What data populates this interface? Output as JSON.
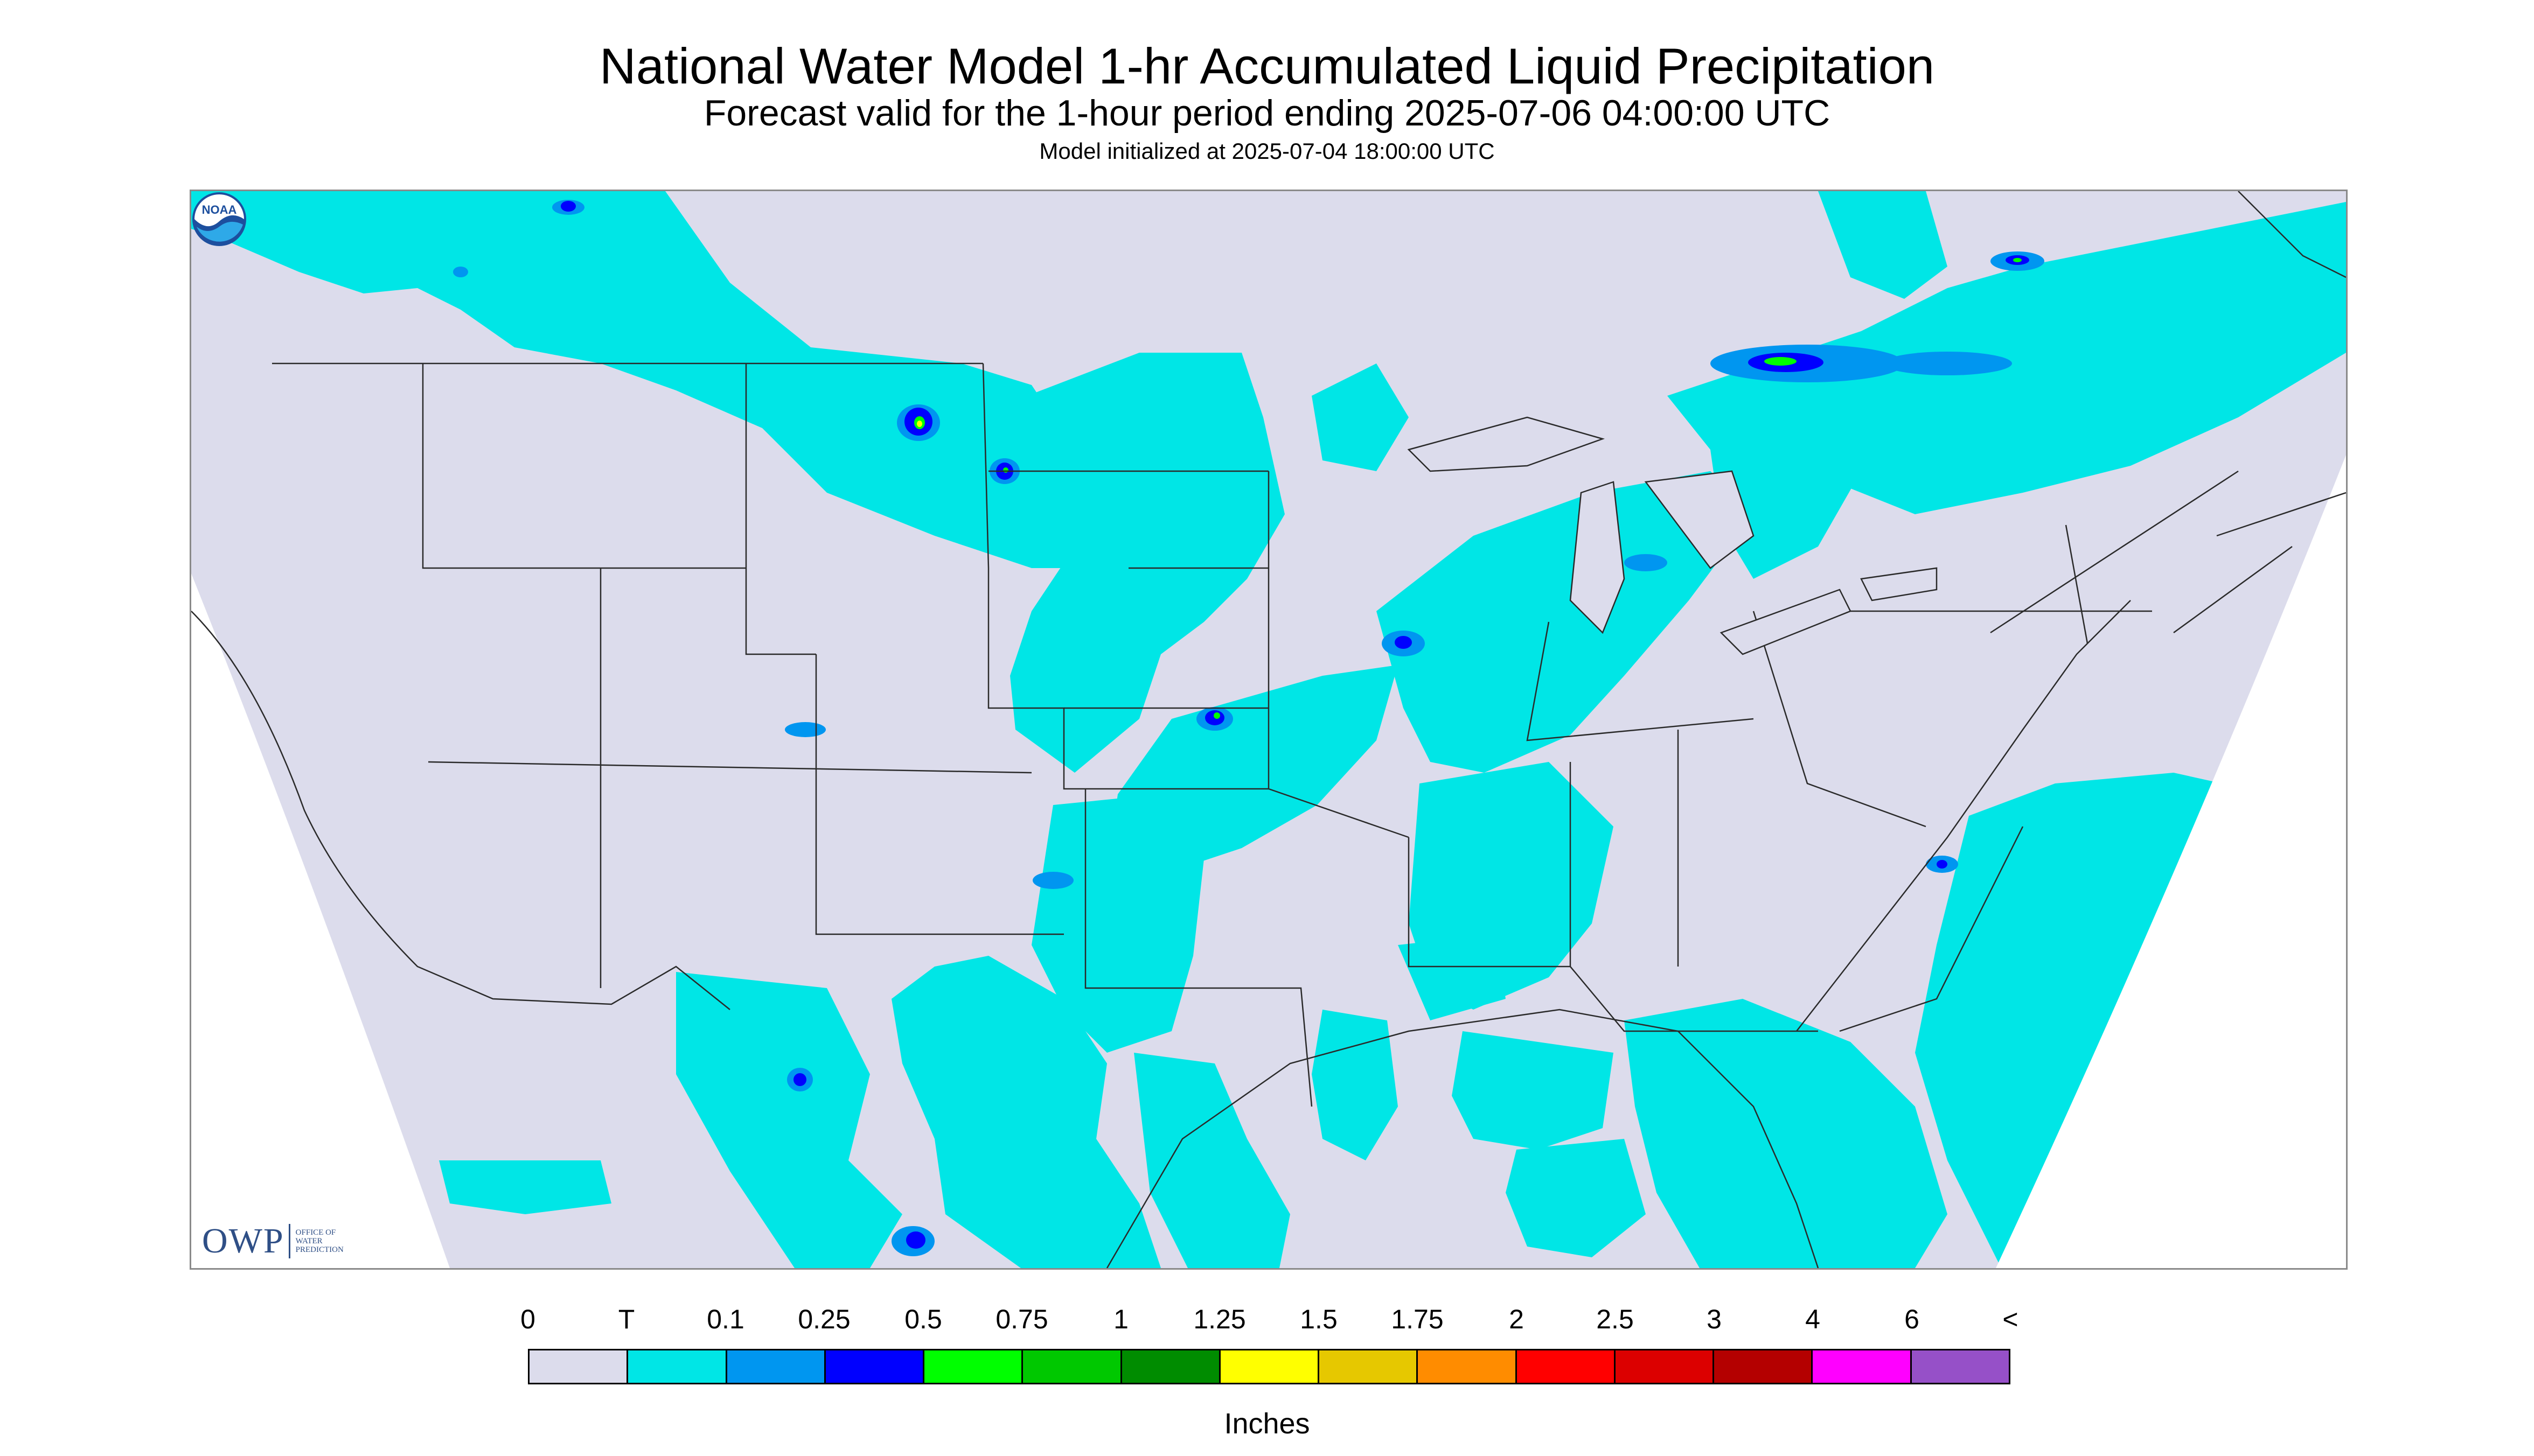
{
  "title": "National Water Model 1-hr Accumulated Liquid Precipitation",
  "subtitle": "Forecast valid for the 1-hour period ending 2025-07-06 04:00:00 UTC",
  "init_line": "Model initialized at 2025-07-04 18:00:00 UTC",
  "map": {
    "outside_color": "#ffffff",
    "no_precip_color": "#dcdcec",
    "region": "Continental United States"
  },
  "logos": {
    "owp": {
      "mark": "OWP",
      "lines": [
        "OFFICE OF",
        "WATER",
        "PREDICTION"
      ]
    },
    "noaa": {
      "text": "NOAA"
    }
  },
  "legend": {
    "labels": [
      "0",
      "T",
      "0.1",
      "0.25",
      "0.5",
      "0.75",
      "1",
      "1.25",
      "1.5",
      "1.75",
      "2",
      "2.5",
      "3",
      "4",
      "6",
      "<"
    ],
    "colors": [
      "#dcdcec",
      "#00e6e6",
      "#0096f0",
      "#0000ff",
      "#00ff00",
      "#00c800",
      "#008c00",
      "#ffff00",
      "#e6c800",
      "#ff8c00",
      "#ff0000",
      "#dc0000",
      "#b40000",
      "#ff00ff",
      "#9650c8"
    ],
    "units": "Inches"
  }
}
